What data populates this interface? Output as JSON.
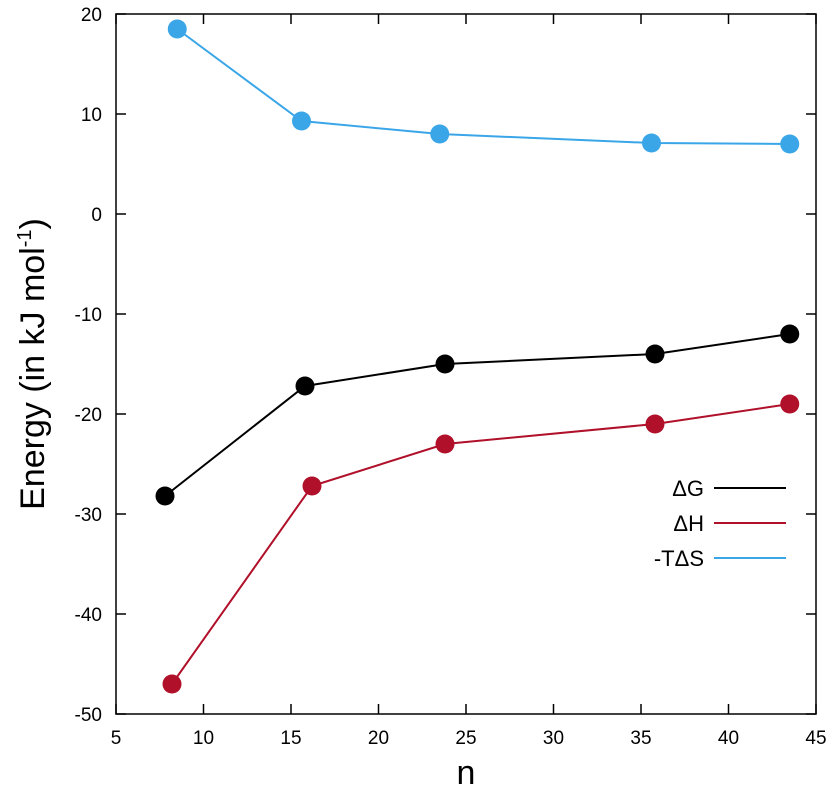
{
  "chart_data": {
    "type": "line",
    "title": "",
    "xlabel": "n",
    "ylabel_main": "Energy (in kJ mol",
    "ylabel_sup": "-1",
    "ylabel_close": ")",
    "xlim": [
      5,
      45
    ],
    "ylim": [
      -50,
      20
    ],
    "xticks": [
      5,
      10,
      15,
      20,
      25,
      30,
      35,
      40,
      45
    ],
    "yticks": [
      -50,
      -40,
      -30,
      -20,
      -10,
      0,
      10,
      20
    ],
    "grid": false,
    "legend_position": "right",
    "series": [
      {
        "name": "ΔG",
        "color": "#000000",
        "points": [
          [
            7.8,
            -28.2
          ],
          [
            15.8,
            -17.2
          ],
          [
            23.8,
            -15.0
          ],
          [
            35.8,
            -14.0
          ],
          [
            43.5,
            -12.0
          ]
        ]
      },
      {
        "name": "ΔH",
        "color": "#b0102a",
        "points": [
          [
            8.2,
            -47.0
          ],
          [
            16.2,
            -27.2
          ],
          [
            23.8,
            -23.0
          ],
          [
            35.8,
            -21.0
          ],
          [
            43.5,
            -19.0
          ]
        ]
      },
      {
        "name": "-TΔS",
        "color": "#3aa6e8",
        "points": [
          [
            8.5,
            18.5
          ],
          [
            15.6,
            9.3
          ],
          [
            23.5,
            8.0
          ],
          [
            35.6,
            7.1
          ],
          [
            43.5,
            7.0
          ]
        ]
      }
    ]
  }
}
